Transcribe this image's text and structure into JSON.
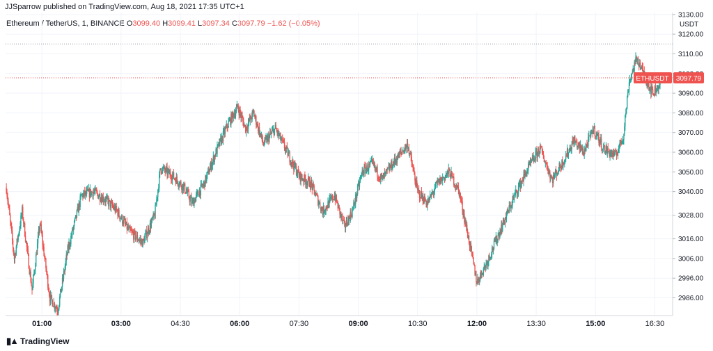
{
  "header": {
    "published": "JJSparrow published on TradingView.com, Aug 18, 2021 17:35 UTC+1"
  },
  "legend": {
    "symbol": "Ethereum / TetherUS, 1, BINANCE",
    "o_label": "O",
    "o_value": "3099.40",
    "h_label": "H",
    "h_value": "3099.41",
    "l_label": "L",
    "l_value": "3097.34",
    "c_label": "C",
    "c_value": "3097.79",
    "change": "−1.62 (−0.05%)"
  },
  "price_tag": {
    "symbol": "ETHUSDT",
    "value": "3097.79"
  },
  "footer": {
    "brand": "TradingView",
    "logo_icon": "tradingview-logo-icon"
  },
  "colors": {
    "up": "#26a69a",
    "down": "#ef5350",
    "grid": "#f0f3fa",
    "axis": "#d1d4dc"
  },
  "chart_data": {
    "type": "candlestick",
    "currency_label": "USDT",
    "y_ticks": [
      "3130.00",
      "3120.00",
      "3110.00",
      "3100.00",
      "3090.00",
      "3080.00",
      "3070.00",
      "3060.00",
      "3050.00",
      "3040.00",
      "3028.00",
      "3016.00",
      "3006.00",
      "2996.00",
      "2986.00"
    ],
    "ylim": [
      2977,
      3131
    ],
    "x_ticks": [
      {
        "label": "01:00",
        "t": 1.0,
        "bold": true
      },
      {
        "label": "03:00",
        "t": 3.0,
        "bold": true
      },
      {
        "label": "04:30",
        "t": 4.5,
        "bold": false
      },
      {
        "label": "06:00",
        "t": 6.0,
        "bold": true
      },
      {
        "label": "07:30",
        "t": 7.5,
        "bold": false
      },
      {
        "label": "09:00",
        "t": 9.0,
        "bold": true
      },
      {
        "label": "10:30",
        "t": 10.5,
        "bold": false
      },
      {
        "label": "12:00",
        "t": 12.0,
        "bold": true
      },
      {
        "label": "13:30",
        "t": 13.5,
        "bold": false
      },
      {
        "label": "15:00",
        "t": 15.0,
        "bold": true
      },
      {
        "label": "16:30",
        "t": 16.5,
        "bold": false
      }
    ],
    "xlim": [
      0.08,
      16.95
    ],
    "last_price": 3097.79,
    "high_line": 3115,
    "price_path": [
      {
        "t": 0.1,
        "p": 3042
      },
      {
        "t": 0.3,
        "p": 3006
      },
      {
        "t": 0.5,
        "p": 3030
      },
      {
        "t": 0.75,
        "p": 2990
      },
      {
        "t": 0.95,
        "p": 3024
      },
      {
        "t": 1.2,
        "p": 2986
      },
      {
        "t": 1.4,
        "p": 2980
      },
      {
        "t": 1.65,
        "p": 3010
      },
      {
        "t": 2.0,
        "p": 3038
      },
      {
        "t": 2.3,
        "p": 3040
      },
      {
        "t": 2.6,
        "p": 3036
      },
      {
        "t": 2.9,
        "p": 3030
      },
      {
        "t": 3.2,
        "p": 3020
      },
      {
        "t": 3.55,
        "p": 3014
      },
      {
        "t": 3.85,
        "p": 3028
      },
      {
        "t": 4.0,
        "p": 3052
      },
      {
        "t": 4.3,
        "p": 3048
      },
      {
        "t": 4.6,
        "p": 3042
      },
      {
        "t": 4.8,
        "p": 3034
      },
      {
        "t": 5.1,
        "p": 3044
      },
      {
        "t": 5.4,
        "p": 3060
      },
      {
        "t": 5.7,
        "p": 3074
      },
      {
        "t": 5.95,
        "p": 3083
      },
      {
        "t": 6.15,
        "p": 3072
      },
      {
        "t": 6.35,
        "p": 3080
      },
      {
        "t": 6.6,
        "p": 3064
      },
      {
        "t": 6.9,
        "p": 3072
      },
      {
        "t": 7.2,
        "p": 3060
      },
      {
        "t": 7.5,
        "p": 3048
      },
      {
        "t": 7.8,
        "p": 3044
      },
      {
        "t": 8.1,
        "p": 3030
      },
      {
        "t": 8.4,
        "p": 3038
      },
      {
        "t": 8.65,
        "p": 3022
      },
      {
        "t": 8.85,
        "p": 3030
      },
      {
        "t": 9.1,
        "p": 3050
      },
      {
        "t": 9.35,
        "p": 3054
      },
      {
        "t": 9.6,
        "p": 3046
      },
      {
        "t": 9.9,
        "p": 3055
      },
      {
        "t": 10.25,
        "p": 3064
      },
      {
        "t": 10.5,
        "p": 3040
      },
      {
        "t": 10.75,
        "p": 3034
      },
      {
        "t": 11.0,
        "p": 3044
      },
      {
        "t": 11.3,
        "p": 3050
      },
      {
        "t": 11.55,
        "p": 3040
      },
      {
        "t": 11.8,
        "p": 3015
      },
      {
        "t": 12.0,
        "p": 2994
      },
      {
        "t": 12.25,
        "p": 3004
      },
      {
        "t": 12.5,
        "p": 3016
      },
      {
        "t": 12.75,
        "p": 3028
      },
      {
        "t": 13.0,
        "p": 3040
      },
      {
        "t": 13.3,
        "p": 3052
      },
      {
        "t": 13.6,
        "p": 3062
      },
      {
        "t": 13.9,
        "p": 3046
      },
      {
        "t": 14.2,
        "p": 3056
      },
      {
        "t": 14.45,
        "p": 3066
      },
      {
        "t": 14.7,
        "p": 3060
      },
      {
        "t": 14.95,
        "p": 3072
      },
      {
        "t": 15.2,
        "p": 3062
      },
      {
        "t": 15.5,
        "p": 3058
      },
      {
        "t": 15.7,
        "p": 3068
      },
      {
        "t": 15.85,
        "p": 3096
      },
      {
        "t": 16.05,
        "p": 3108
      },
      {
        "t": 16.25,
        "p": 3098
      },
      {
        "t": 16.45,
        "p": 3090
      },
      {
        "t": 16.6,
        "p": 3094
      },
      {
        "t": 16.68,
        "p": 3097.79
      }
    ]
  }
}
